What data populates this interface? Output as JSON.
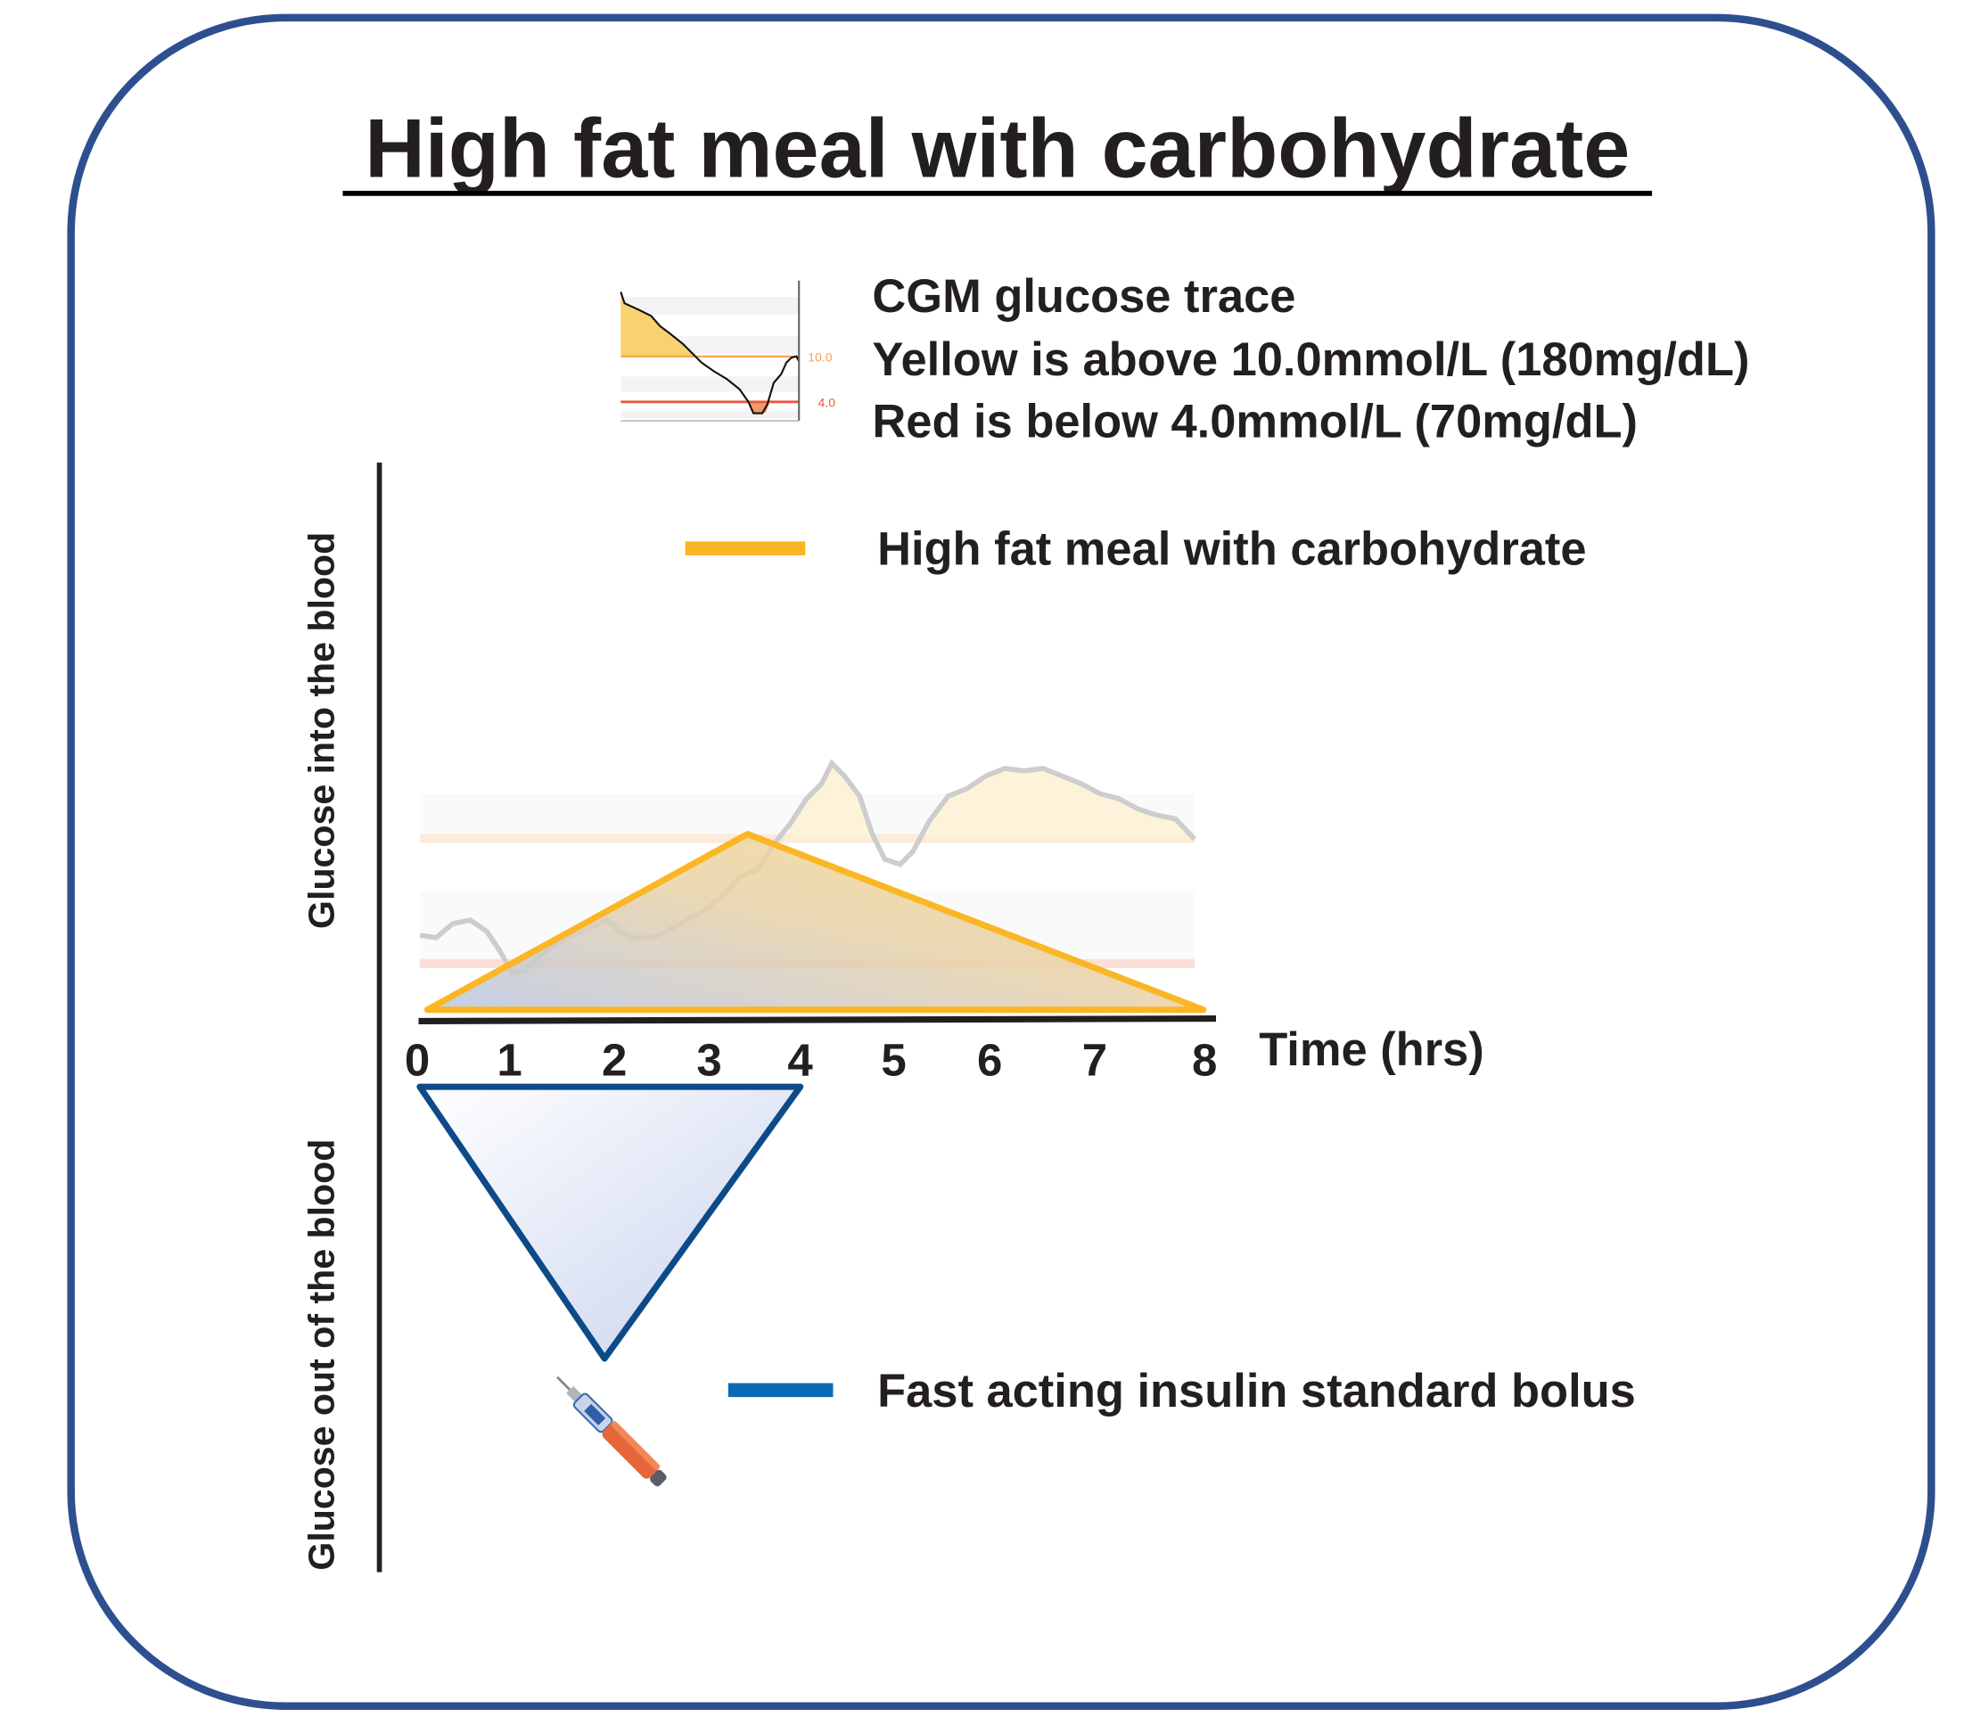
{
  "title": "High fat meal with carbohydrate",
  "legend": {
    "cgm_lines": [
      "CGM glucose trace",
      "Yellow is above 10.0mmol/L (180mg/dL)",
      "Red is below 4.0mmol/L (70mg/dL)"
    ],
    "cgm_thumb_high": "10.0",
    "cgm_thumb_low": "4.0",
    "meal_label": "High fat meal with carbohydrate",
    "insulin_label": "Fast acting insulin standard bolus"
  },
  "axes": {
    "y_upper": "Glucose into the blood",
    "y_lower": "Glucose out of the blood",
    "x_label": "Time (hrs)",
    "x_ticks": [
      "0",
      "1",
      "2",
      "3",
      "4",
      "5",
      "6",
      "7",
      "8"
    ]
  },
  "shapes": {
    "meal": {
      "start_hr": 0,
      "peak_hr": 3.3,
      "end_hr": 8
    },
    "insulin": {
      "start_hr": 0,
      "peak_hr": 1.8,
      "end_hr": 4
    }
  },
  "colors": {
    "border": "#2e4f8f",
    "meal": "#fbb625",
    "insulin": "#0c4a88",
    "insulin_legend": "#0a6ab8",
    "high": "#f7a24a",
    "low": "#ea5a3c"
  }
}
